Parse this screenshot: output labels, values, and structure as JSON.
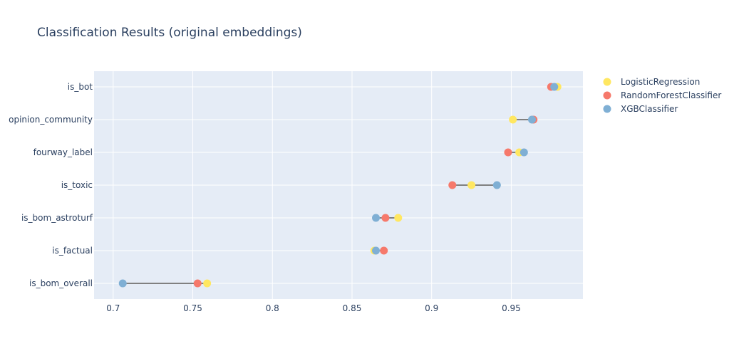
{
  "chart_data": {
    "type": "scatter",
    "title": "Classification Results (original embeddings)",
    "xlabel": "",
    "ylabel": "",
    "xlim": [
      0.688,
      0.995
    ],
    "x_ticks": [
      0.7,
      0.75,
      0.8,
      0.85,
      0.9,
      0.95
    ],
    "x_tick_labels": [
      "0.7",
      "0.75",
      "0.8",
      "0.85",
      "0.9",
      "0.95"
    ],
    "categories": [
      "is_bot",
      "opinion_community",
      "fourway_label",
      "is_toxic",
      "is_bom_astroturf",
      "is_factual",
      "is_bom_overall"
    ],
    "grid": true,
    "legend_position": "top-right",
    "range_line_color": "#808080",
    "plot_background": "#e5ecf6",
    "series": [
      {
        "name": "LogisticRegression",
        "color": "#ffe761",
        "values": [
          0.979,
          0.951,
          0.955,
          0.925,
          0.879,
          0.864,
          0.759
        ]
      },
      {
        "name": "RandomForestClassifier",
        "color": "#f6796b",
        "values": [
          0.975,
          0.964,
          0.948,
          0.913,
          0.871,
          0.87,
          0.753
        ]
      },
      {
        "name": "XGBClassifier",
        "color": "#7fafd4",
        "values": [
          0.977,
          0.963,
          0.958,
          0.941,
          0.865,
          0.865,
          0.706
        ]
      }
    ]
  }
}
